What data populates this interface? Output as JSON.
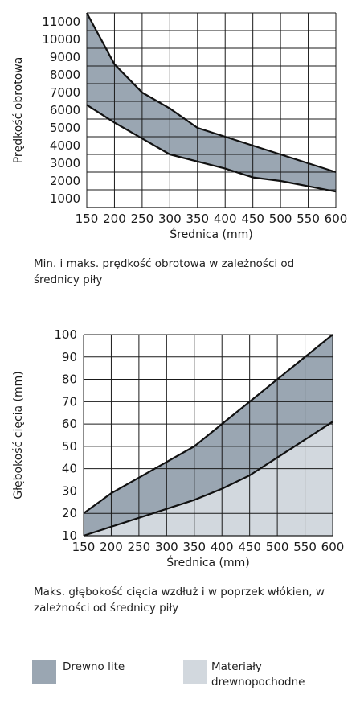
{
  "chart_data": [
    {
      "type": "area",
      "xlabel": "Średnica (mm)",
      "ylabel": "Prędkość obrotowa",
      "caption": "Min. i maks. prędkość obrotowa w zależności od średnicy piły",
      "x_ticks": [
        150,
        200,
        250,
        300,
        350,
        400,
        450,
        500,
        550,
        600
      ],
      "y_ticks": [
        1000,
        2000,
        3000,
        4000,
        5000,
        6000,
        7000,
        8000,
        9000,
        10000,
        11000
      ],
      "xlim": [
        150,
        600
      ],
      "ylim": [
        500,
        11500
      ],
      "grid": true,
      "fill_color": "#9aa6b2",
      "series": [
        {
          "x": [
            150,
            200,
            250,
            300,
            350,
            400,
            450,
            500,
            550,
            600
          ],
          "values": [
            11500,
            8600,
            7000,
            6100,
            5000,
            4500,
            4000,
            3500,
            3000,
            2500
          ]
        },
        {
          "x": [
            150,
            200,
            250,
            300,
            350,
            400,
            450,
            500,
            550,
            600
          ],
          "values": [
            6300,
            5300,
            4400,
            3500,
            3100,
            2700,
            2200,
            2000,
            1700,
            1400
          ]
        }
      ]
    },
    {
      "type": "area",
      "xlabel": "Średnica (mm)",
      "ylabel": "Głębokość cięcia (mm)",
      "caption": "Maks. głębokość cięcia wzdłuż i w poprzek włókien, w zależności od średnicy piły",
      "x_ticks": [
        150,
        200,
        250,
        300,
        350,
        400,
        450,
        500,
        550,
        600
      ],
      "y_ticks": [
        10,
        20,
        30,
        40,
        50,
        60,
        70,
        80,
        90,
        100
      ],
      "xlim": [
        150,
        600
      ],
      "ylim": [
        10,
        100
      ],
      "grid": true,
      "series": [
        {
          "name": "Drewno lite",
          "color": "#9aa6b2",
          "x": [
            150,
            200,
            250,
            300,
            350,
            400,
            450,
            500,
            550,
            600
          ],
          "values": [
            20,
            29,
            36,
            43,
            50,
            60,
            70,
            80,
            90,
            100
          ]
        },
        {
          "name": "Materiały drewnopochodne",
          "color": "#d2d8de",
          "x": [
            150,
            200,
            250,
            300,
            350,
            400,
            450,
            500,
            550,
            600
          ],
          "values": [
            10,
            14,
            18,
            22,
            26,
            31,
            37,
            45,
            53,
            61
          ]
        }
      ]
    }
  ],
  "legend": [
    {
      "label": "Drewno lite",
      "color": "#9aa6b2"
    },
    {
      "label": "Materiały drewnopochodne",
      "color": "#d2d8de"
    }
  ]
}
